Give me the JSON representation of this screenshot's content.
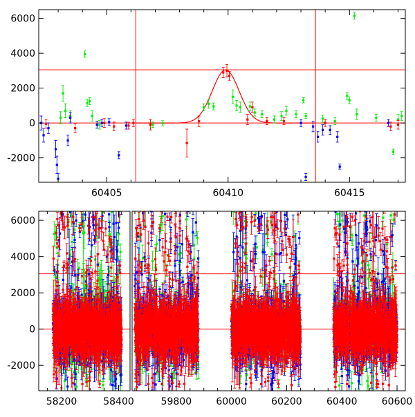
{
  "colors": {
    "frame": "#000000",
    "red": "#ff0000",
    "green": "#00ee00",
    "blue": "#0000ff",
    "background": "#ffffff"
  },
  "chart_data": [
    {
      "type": "scatter",
      "title": "",
      "xlabel": "",
      "ylabel": "",
      "xlim": [
        60402.2,
        60417.3
      ],
      "ylim": [
        -3400,
        6500
      ],
      "x_ticks": [
        "60405",
        "60410",
        "60415"
      ],
      "x_tick_values": [
        60405,
        60410,
        60415
      ],
      "y_ticks": [
        "-2000",
        "0",
        "2000",
        "4000",
        "6000"
      ],
      "y_tick_values": [
        -2000,
        0,
        2000,
        4000,
        6000
      ],
      "horizontal_lines": [
        3050,
        0
      ],
      "vertical_lines": [
        60406.2,
        60413.6
      ],
      "model_curve": {
        "type": "gaussian",
        "peak_x": 60409.9,
        "amplitude": 3050,
        "sigma": 0.55,
        "baseline": 0,
        "x_range": [
          60406.2,
          60413.6
        ]
      },
      "series": [
        {
          "color": "green",
          "points": [
            [
              60403.1,
              300,
              350
            ],
            [
              60403.2,
              1700,
              450
            ],
            [
              60403.3,
              700,
              400
            ],
            [
              60403.5,
              400,
              300
            ],
            [
              60404.1,
              3950,
              180
            ],
            [
              60404.2,
              1150,
              200
            ],
            [
              60404.3,
              1250,
              200
            ],
            [
              60404.4,
              400,
              300
            ],
            [
              60404.7,
              -100,
              250
            ],
            [
              60406.9,
              -100,
              150
            ],
            [
              60407.3,
              -20,
              150
            ],
            [
              60409.0,
              900,
              200
            ],
            [
              60409.2,
              1100,
              250
            ],
            [
              60409.4,
              950,
              200
            ],
            [
              60410.2,
              1500,
              400
            ],
            [
              60410.35,
              1000,
              300
            ],
            [
              60410.5,
              900,
              300
            ],
            [
              60410.9,
              950,
              250
            ],
            [
              60411.1,
              600,
              200
            ],
            [
              60411.4,
              500,
              200
            ],
            [
              60411.9,
              200,
              200
            ],
            [
              60412.2,
              400,
              250
            ],
            [
              60412.4,
              700,
              250
            ],
            [
              60412.8,
              500,
              200
            ],
            [
              60413.1,
              1300,
              150
            ],
            [
              60413.2,
              400,
              150
            ],
            [
              60413.9,
              250,
              200
            ],
            [
              60414.4,
              100,
              200
            ],
            [
              60414.9,
              1550,
              200
            ],
            [
              60415.0,
              1300,
              200
            ],
            [
              60415.2,
              6150,
              200
            ],
            [
              60415.3,
              500,
              300
            ],
            [
              60416.1,
              300,
              200
            ],
            [
              60416.8,
              -1650,
              150
            ],
            [
              60417.0,
              200,
              300
            ],
            [
              60417.15,
              400,
              250
            ]
          ]
        },
        {
          "color": "blue",
          "points": [
            [
              60402.3,
              0,
              400
            ],
            [
              60402.4,
              -700,
              400
            ],
            [
              60402.6,
              -300,
              300
            ],
            [
              60402.9,
              -1500,
              500
            ],
            [
              60402.95,
              -2400,
              500
            ],
            [
              60403.0,
              -3200,
              300
            ],
            [
              60403.4,
              -1000,
              300
            ],
            [
              60403.5,
              300,
              300
            ],
            [
              60404.6,
              -100,
              200
            ],
            [
              60404.8,
              0,
              200
            ],
            [
              60405.1,
              50,
              200
            ],
            [
              60405.5,
              -1850,
              200
            ],
            [
              60405.8,
              -150,
              200
            ],
            [
              60413.0,
              0,
              200
            ],
            [
              60413.2,
              -3100,
              200
            ],
            [
              60413.5,
              -200,
              300
            ],
            [
              60413.7,
              -800,
              300
            ],
            [
              60413.9,
              -400,
              300
            ],
            [
              60414.2,
              -400,
              250
            ],
            [
              60414.5,
              -800,
              300
            ],
            [
              60414.6,
              -2500,
              150
            ],
            [
              60416.6,
              0,
              200
            ]
          ]
        },
        {
          "color": "red",
          "points": [
            [
              60402.5,
              -50,
              250
            ],
            [
              60403.7,
              -300,
              250
            ],
            [
              60404.9,
              0,
              250
            ],
            [
              60405.3,
              -200,
              250
            ],
            [
              60405.9,
              -150,
              200
            ],
            [
              60406.1,
              0,
              200
            ],
            [
              60406.8,
              -100,
              300
            ],
            [
              60408.3,
              -1150,
              800
            ],
            [
              60408.8,
              100,
              300
            ],
            [
              60409.8,
              2900,
              300
            ],
            [
              60409.95,
              3000,
              350
            ],
            [
              60410.05,
              2700,
              250
            ],
            [
              60410.8,
              200,
              300
            ],
            [
              60411.0,
              900,
              300
            ],
            [
              60411.6,
              100,
              200
            ],
            [
              60412.3,
              100,
              200
            ],
            [
              60414.0,
              0,
              200
            ],
            [
              60416.7,
              -200,
              250
            ],
            [
              60417.0,
              -100,
              250
            ]
          ]
        }
      ]
    },
    {
      "type": "scatter",
      "title": "",
      "xlabel": "",
      "ylabel": "",
      "broken_x_axis": true,
      "segments": [
        {
          "xlim": [
            58120,
            58440
          ],
          "x_ticks": [
            "58200",
            "58400"
          ],
          "x_tick_values": [
            58200,
            58400
          ],
          "data_range": [
            58170,
            58410
          ]
        },
        {
          "xlim": [
            59640,
            60630
          ],
          "x_ticks": [
            "59800",
            "60000",
            "60200",
            "60400",
            "60600"
          ],
          "x_tick_values": [
            59800,
            60000,
            60200,
            60400,
            60600
          ],
          "data_ranges": [
            [
              59650,
              59880
            ],
            [
              60000,
              60250
            ],
            [
              60370,
              60600
            ]
          ]
        }
      ],
      "ylim": [
        -3400,
        6500
      ],
      "y_ticks": [
        "-2000",
        "0",
        "2000",
        "4000",
        "6000"
      ],
      "y_tick_values": [
        -2000,
        0,
        2000,
        4000,
        6000
      ],
      "horizontal_lines": [
        3050,
        0
      ],
      "series": [
        {
          "color": "green",
          "points_per_unit_x": 2.2,
          "typical_y": [
            -700,
            700
          ],
          "typical_err": [
            200,
            900
          ],
          "outlier_fraction": 0.2
        },
        {
          "color": "blue",
          "points_per_unit_x": 2.2,
          "typical_y": [
            -800,
            600
          ],
          "typical_err": [
            200,
            900
          ],
          "outlier_fraction": 0.2
        },
        {
          "color": "red",
          "points_per_unit_x": 4.5,
          "typical_y": [
            -700,
            700
          ],
          "typical_err": [
            150,
            700
          ],
          "outlier_fraction": 0.12
        }
      ]
    }
  ]
}
